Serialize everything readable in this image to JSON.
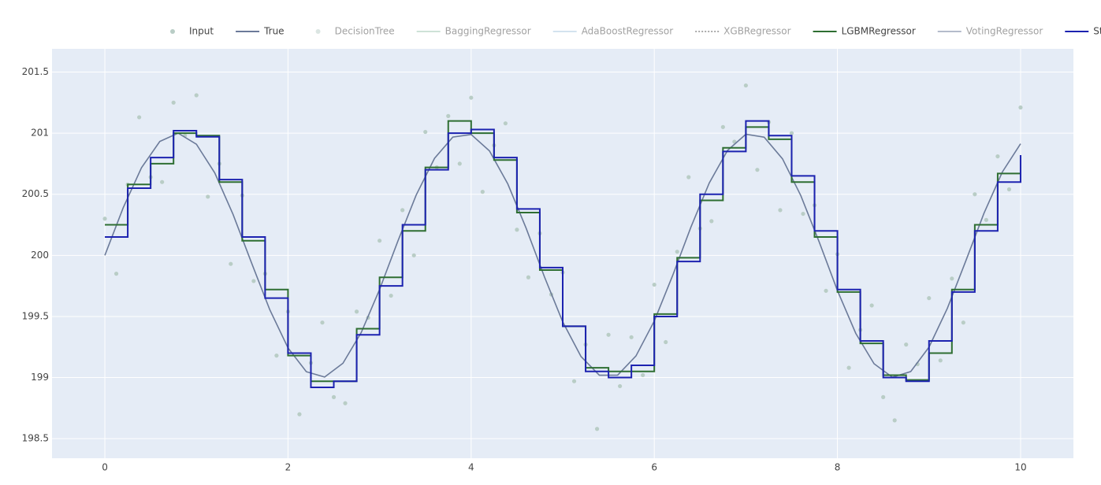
{
  "chart_data": {
    "type": "line",
    "xlim": [
      -0.577,
      10.577
    ],
    "ylim": [
      198.34,
      201.69
    ],
    "xticks": [
      0,
      2,
      4,
      6,
      8,
      10
    ],
    "yticks": [
      198.5,
      199,
      199.5,
      200,
      200.5,
      201,
      201.5
    ],
    "grid": true,
    "legend": "top",
    "series": [
      {
        "name": "Input",
        "color": "#b9cdc6",
        "mode": "markers",
        "x": [
          0,
          0.125,
          0.25,
          0.375,
          0.5,
          0.625,
          0.75,
          0.875,
          1,
          1.125,
          1.25,
          1.375,
          1.5,
          1.625,
          1.75,
          1.875,
          2,
          2.125,
          2.25,
          2.375,
          2.5,
          2.625,
          2.75,
          2.875,
          3,
          3.125,
          3.25,
          3.375,
          3.5,
          3.625,
          3.75,
          3.875,
          4,
          4.125,
          4.25,
          4.375,
          4.5,
          4.625,
          4.75,
          4.875,
          5,
          5.125,
          5.25,
          5.375,
          5.5,
          5.625,
          5.75,
          5.875,
          6,
          6.125,
          6.25,
          6.375,
          6.5,
          6.625,
          6.75,
          6.875,
          7,
          7.125,
          7.25,
          7.375,
          7.5,
          7.625,
          7.75,
          7.875,
          8,
          8.125,
          8.25,
          8.375,
          8.5,
          8.625,
          8.75,
          8.875,
          9,
          9.125,
          9.25,
          9.375,
          9.5,
          9.625,
          9.75,
          9.875,
          10
        ],
        "values": [
          200.3,
          199.85,
          200.58,
          201.13,
          200.64,
          200.6,
          201.25,
          200.98,
          201.31,
          200.48,
          200.75,
          199.93,
          200.49,
          199.79,
          199.85,
          199.18,
          199.54,
          198.7,
          199.12,
          199.45,
          198.84,
          198.79,
          199.54,
          199.49,
          200.12,
          199.67,
          200.37,
          200.0,
          201.01,
          200.72,
          201.14,
          200.75,
          201.29,
          200.52,
          200.9,
          201.08,
          200.21,
          199.82,
          200.18,
          199.68,
          199.86,
          198.97,
          199.27,
          198.58,
          199.35,
          198.93,
          199.33,
          199.02,
          199.76,
          199.29,
          200.03,
          200.64,
          200.22,
          200.28,
          201.05,
          200.93,
          201.39,
          200.7,
          201.09,
          200.37,
          201.0,
          200.34,
          200.41,
          199.71,
          200.01,
          199.08,
          199.39,
          199.59,
          198.84,
          198.65,
          199.27,
          199.11,
          199.65,
          199.14,
          199.81,
          199.45,
          200.5,
          200.29,
          200.81,
          200.54,
          201.21
        ]
      },
      {
        "name": "True",
        "color": "#6b7a99",
        "mode": "lines",
        "x": [
          0,
          0.2,
          0.4,
          0.6,
          0.8,
          1,
          1.2,
          1.4,
          1.6,
          1.8,
          2,
          2.2,
          2.4,
          2.6,
          2.8,
          3,
          3.2,
          3.4,
          3.6,
          3.8,
          4,
          4.2,
          4.4,
          4.6,
          4.8,
          5,
          5.2,
          5.4,
          5.6,
          5.8,
          6,
          6.2,
          6.4,
          6.6,
          6.8,
          7,
          7.2,
          7.4,
          7.6,
          7.8,
          8,
          8.2,
          8.4,
          8.6,
          8.8,
          9,
          9.2,
          9.4,
          9.6,
          9.8,
          10
        ],
        "values": [
          200,
          200.389,
          200.717,
          200.932,
          201.0,
          200.909,
          200.675,
          200.335,
          199.942,
          199.557,
          199.243,
          199.048,
          199.004,
          199.117,
          199.369,
          199.721,
          200.117,
          200.494,
          200.794,
          200.968,
          200.989,
          200.855,
          200.585,
          200.223,
          199.825,
          199.456,
          199.172,
          199.019,
          199.02,
          199.177,
          199.463,
          199.834,
          200.231,
          200.592,
          200.859,
          200.991,
          200.967,
          200.79,
          200.489,
          200.111,
          199.712,
          199.362,
          199.113,
          199.003,
          199.049,
          199.249,
          199.566,
          199.951,
          200.344,
          200.681,
          200.913
        ]
      },
      {
        "name": "DecisionTree",
        "color": "#b9cdc6",
        "mode": "markers",
        "visible": "legendonly"
      },
      {
        "name": "BaggingRegressor",
        "color": "#9fc7b0",
        "mode": "lines",
        "visible": "legendonly"
      },
      {
        "name": "AdaBoostRegressor",
        "color": "#a9c8e0",
        "mode": "lines",
        "visible": "legendonly"
      },
      {
        "name": "XGBRegressor",
        "color": "#555555",
        "mode": "lines",
        "dash": "dot",
        "visible": "legendonly"
      },
      {
        "name": "LGBMRegressor",
        "color": "#2e6e32",
        "mode": "lines",
        "line_shape": "hv",
        "x": [
          0,
          0.25,
          0.5,
          0.75,
          1,
          1.25,
          1.5,
          1.75,
          2,
          2.25,
          2.5,
          2.75,
          3,
          3.25,
          3.5,
          3.75,
          4,
          4.25,
          4.5,
          4.75,
          5,
          5.25,
          5.5,
          5.75,
          6,
          6.25,
          6.5,
          6.75,
          7,
          7.25,
          7.5,
          7.75,
          8,
          8.25,
          8.5,
          8.75,
          9,
          9.25,
          9.5,
          9.75,
          10
        ],
        "values": [
          200.25,
          200.58,
          200.75,
          201.0,
          200.98,
          200.6,
          200.12,
          199.72,
          199.18,
          198.97,
          198.97,
          199.4,
          199.82,
          200.2,
          200.72,
          201.1,
          201.0,
          200.78,
          200.35,
          199.88,
          199.42,
          199.08,
          199.05,
          199.05,
          199.52,
          199.98,
          200.45,
          200.88,
          201.05,
          200.95,
          200.6,
          200.15,
          199.7,
          199.28,
          199.02,
          198.98,
          199.2,
          199.72,
          200.25,
          200.67,
          200.67
        ]
      },
      {
        "name": "VotingRegressor",
        "color": "#6b7a99",
        "mode": "lines",
        "visible": "legendonly"
      },
      {
        "name": "StackingRegressor",
        "color": "#1c22b0",
        "mode": "lines",
        "line_shape": "hv",
        "x": [
          0,
          0.25,
          0.5,
          0.75,
          1,
          1.25,
          1.5,
          1.75,
          2,
          2.25,
          2.5,
          2.75,
          3,
          3.25,
          3.5,
          3.75,
          4,
          4.25,
          4.5,
          4.75,
          5,
          5.25,
          5.5,
          5.75,
          6,
          6.25,
          6.5,
          6.75,
          7,
          7.25,
          7.5,
          7.75,
          8,
          8.25,
          8.5,
          8.75,
          9,
          9.25,
          9.5,
          9.75,
          10
        ],
        "values": [
          200.15,
          200.55,
          200.8,
          201.02,
          200.97,
          200.62,
          200.15,
          199.65,
          199.2,
          198.92,
          198.97,
          199.35,
          199.75,
          200.25,
          200.7,
          201.0,
          201.03,
          200.8,
          200.38,
          199.9,
          199.42,
          199.05,
          199.0,
          199.1,
          199.5,
          199.95,
          200.5,
          200.85,
          201.1,
          200.98,
          200.65,
          200.2,
          199.72,
          199.3,
          199.0,
          198.97,
          199.3,
          199.7,
          200.2,
          200.6,
          200.82
        ]
      }
    ]
  }
}
